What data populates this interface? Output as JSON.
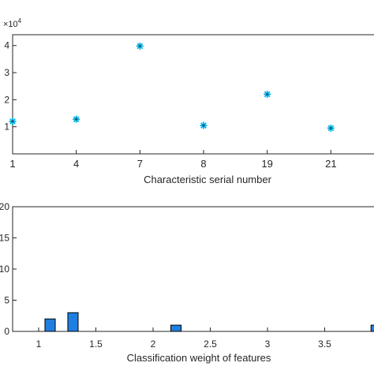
{
  "colors": {
    "axis": "#262626",
    "background": "#ffffff",
    "marker": "#00b4e6",
    "marker_edge": "#1a4a6b",
    "bar_fill": "#1f7fe0",
    "bar_edge": "#000000"
  },
  "chart_data": [
    {
      "type": "scatter",
      "title": "",
      "xlabel": "Characteristic serial number",
      "ylabel": "",
      "y_multiplier_label": "×10",
      "y_multiplier_exp": "4",
      "categories": [
        "1",
        "4",
        "7",
        "8",
        "19",
        "21"
      ],
      "x": [
        1,
        2,
        3,
        4,
        5,
        6
      ],
      "y": [
        1.2,
        1.28,
        3.98,
        1.05,
        2.2,
        0.95
      ],
      "ylim": [
        0,
        4.4
      ],
      "yticks": [
        1,
        2,
        3,
        4
      ],
      "ytick_labels": [
        "1",
        "2",
        "3",
        "4"
      ],
      "marker": "star",
      "grid": false
    },
    {
      "type": "bar",
      "title": "",
      "xlabel": "Classification weight of features",
      "ylabel": "",
      "x": [
        1.1,
        1.3,
        2.2,
        3.95
      ],
      "values": [
        2,
        3,
        1,
        1
      ],
      "bar_width": 0.09,
      "xlim": [
        0.85,
        4.0
      ],
      "ylim": [
        0,
        20
      ],
      "xticks": [
        1,
        1.5,
        2,
        2.5,
        3,
        3.5
      ],
      "xtick_labels": [
        "1",
        "1.5",
        "2",
        "2.5",
        "3",
        "3.5"
      ],
      "yticks": [
        0,
        5,
        10,
        15,
        20
      ],
      "ytick_labels": [
        "0",
        "5",
        "10",
        "15",
        "20"
      ],
      "grid": false
    }
  ]
}
